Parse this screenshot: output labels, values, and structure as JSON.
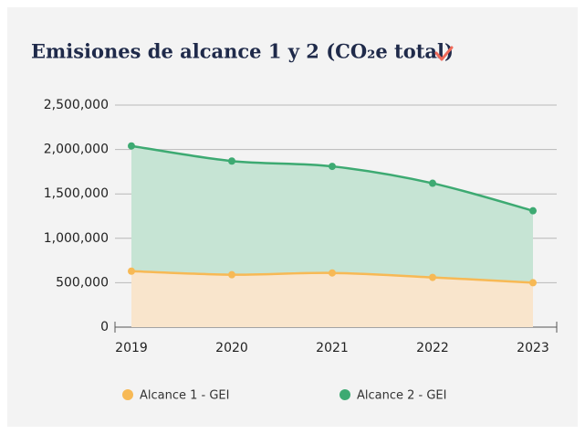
{
  "chart_data": {
    "type": "area",
    "title": "Emisiones de alcance 1 y 2 (CO₂e total)",
    "categories": [
      "2019",
      "2020",
      "2021",
      "2022",
      "2023"
    ],
    "series": [
      {
        "name": "Alcance 1 - GEI",
        "color": "#f7b955",
        "fill": "#f9e5cc",
        "values": [
          630000,
          590000,
          610000,
          560000,
          500000
        ]
      },
      {
        "name": "Alcance 2 - GEI",
        "color": "#3daa72",
        "fill": "#c6e4d4",
        "values": [
          2040000,
          1870000,
          1810000,
          1620000,
          1310000
        ]
      }
    ],
    "ylim": [
      0,
      2500000
    ],
    "yticks": [
      0,
      {
        "value": 500000,
        "label": "500,000"
      },
      {
        "value": 1000000,
        "label": "1,000,000"
      },
      {
        "value": 1500000,
        "label": "1,500,000"
      },
      {
        "value": 2000000,
        "label": "2,000,000"
      },
      {
        "value": 2500000,
        "label": "2,500,000"
      }
    ],
    "grid": true,
    "legend": "bottom"
  }
}
